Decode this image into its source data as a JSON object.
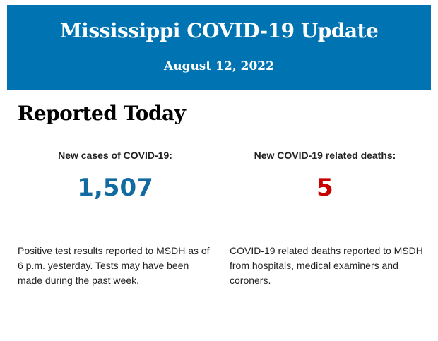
{
  "header": {
    "title": "Mississippi COVID-19 Update",
    "date": "August 12, 2022"
  },
  "section": {
    "title": "Reported Today"
  },
  "stats": [
    {
      "label": "New cases of COVID-19:",
      "value": "1,507",
      "color": "#126ba0",
      "description": "Positive test results reported to MSDH as of 6 p.m. yesterday. Tests may have been made during the past week,"
    },
    {
      "label": "New COVID-19 related deaths:",
      "value": "5",
      "color": "#c80000",
      "description": "COVID-19 related deaths reported to MSDH from hospitals, medical examiners and coroners."
    }
  ]
}
